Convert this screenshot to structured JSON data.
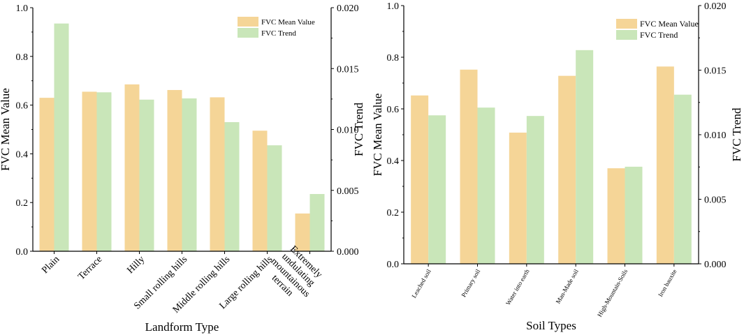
{
  "colors": {
    "mean": "#f5d597",
    "trend": "#c9e6b9",
    "axis": "#000000"
  },
  "chart_data": [
    {
      "type": "bar",
      "xlabel": "Landform Type",
      "ylabel": "FVC Mean Value",
      "ylabel_right": "FVC Trend",
      "categories": [
        "Plain",
        "Terrace",
        "Hilly",
        "Small rolling hills",
        "Middle rolling hills",
        "Large rolling hills",
        "Extremely undulating mountainous terrain"
      ],
      "category_lines": [
        [
          "Plain"
        ],
        [
          "Terrace"
        ],
        [
          "Hilly"
        ],
        [
          "Small rolling hills"
        ],
        [
          "Middle rolling hills"
        ],
        [
          "Large rolling hills"
        ],
        [
          "Extremely",
          "undulating",
          "mountainous",
          "terrain"
        ]
      ],
      "series": [
        {
          "name": "FVC Mean Value",
          "axis": "left",
          "values": [
            0.63,
            0.655,
            0.685,
            0.662,
            0.632,
            0.495,
            0.155
          ]
        },
        {
          "name": "FVC Trend",
          "axis": "right",
          "values": [
            0.0187,
            0.01305,
            0.01245,
            0.01255,
            0.0106,
            0.0087,
            0.0047
          ]
        }
      ],
      "ylim": [
        0,
        1.0
      ],
      "yticks": [
        "0.0",
        "0.2",
        "0.4",
        "0.6",
        "0.8",
        "1.0"
      ],
      "ylim_right": [
        0,
        0.02
      ],
      "yticks_right": [
        "0.000",
        "0.005",
        "0.010",
        "0.015",
        "0.020"
      ],
      "legend_position": "top-right"
    },
    {
      "type": "bar",
      "xlabel": "Soil Types",
      "ylabel": "FVC Mean Value",
      "ylabel_right": "FVC Trend",
      "categories": [
        "Leached soil",
        "Primary soil",
        "Water into earth",
        "Man-Made soil",
        "High-Mountain-Soils",
        "Iron bauxite"
      ],
      "category_lines": [
        [
          "Leached soil"
        ],
        [
          "Primary soil"
        ],
        [
          "Water into earth"
        ],
        [
          "Man-Made soil"
        ],
        [
          "High-Mountain-Soils"
        ],
        [
          "Iron bauxite"
        ]
      ],
      "series": [
        {
          "name": "FVC Mean Value",
          "axis": "left",
          "values": [
            0.652,
            0.752,
            0.508,
            0.728,
            0.37,
            0.764
          ]
        },
        {
          "name": "FVC Trend",
          "axis": "right",
          "values": [
            0.0115,
            0.0121,
            0.01145,
            0.01655,
            0.00752,
            0.0131
          ]
        }
      ],
      "ylim": [
        0,
        1.0
      ],
      "yticks": [
        "0.0",
        "0.2",
        "0.4",
        "0.6",
        "0.8",
        "1.0"
      ],
      "ylim_right": [
        0,
        0.02
      ],
      "yticks_right": [
        "0.000",
        "0.005",
        "0.010",
        "0.015",
        "0.020"
      ],
      "legend_position": "top-right"
    }
  ]
}
